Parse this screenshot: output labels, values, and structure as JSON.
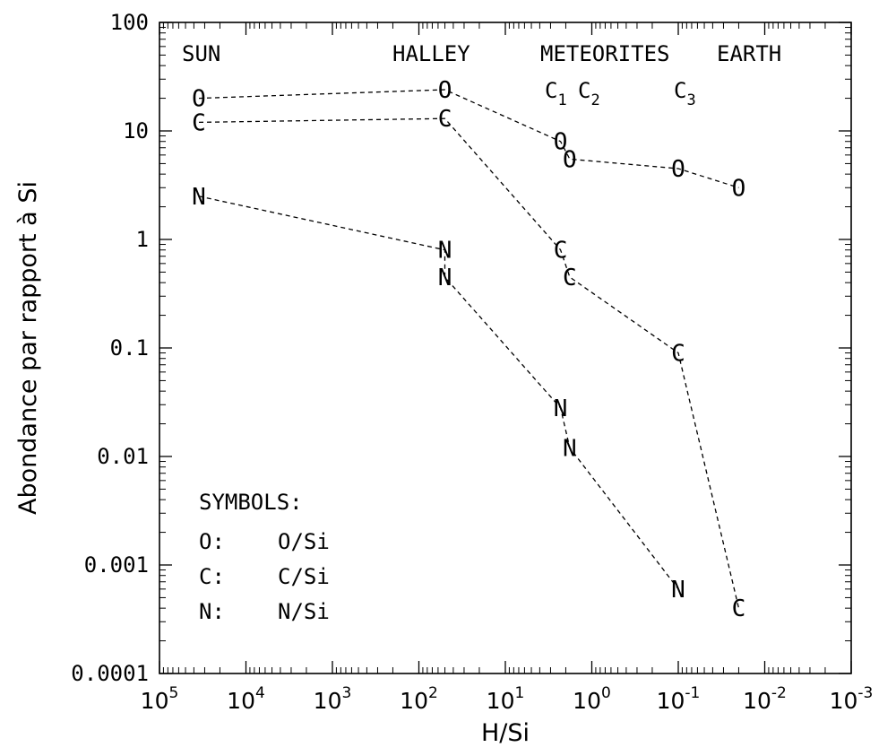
{
  "chart_data": {
    "type": "line",
    "title": "",
    "xlabel": "H/Si",
    "ylabel": "Abondance par rapport à Si",
    "x_scale": "log",
    "x_reversed": true,
    "y_scale": "log",
    "xlim": [
      100000,
      0.001
    ],
    "ylim": [
      0.0001,
      100
    ],
    "grid": false,
    "x_ticks": [
      {
        "base": "10",
        "exp": "5"
      },
      {
        "base": "10",
        "exp": "4"
      },
      {
        "base": "10",
        "exp": "3"
      },
      {
        "base": "10",
        "exp": "2"
      },
      {
        "base": "10",
        "exp": "1"
      },
      {
        "base": "10",
        "exp": "0"
      },
      {
        "base": "10",
        "exp": "-1"
      },
      {
        "base": "10",
        "exp": "-2"
      },
      {
        "base": "10",
        "exp": "-3"
      }
    ],
    "y_ticks": [
      "100",
      "10",
      "1",
      "0.1",
      "0.01",
      "0.001",
      "0.0001"
    ],
    "series": [
      {
        "name": "O/Si",
        "marker": "O",
        "x": [
          35000,
          50,
          2.3,
          1.8,
          0.1,
          0.02
        ],
        "y": [
          20,
          24,
          8,
          5.5,
          4.5,
          3
        ]
      },
      {
        "name": "C/Si",
        "marker": "C",
        "x": [
          35000,
          50,
          2.3,
          1.8,
          0.1,
          0.02
        ],
        "y": [
          12,
          13,
          0.8,
          0.45,
          0.09,
          0.0004
        ]
      },
      {
        "name": "N/Si",
        "marker": "N",
        "x": [
          35000,
          50,
          50,
          2.3,
          1.8,
          0.1
        ],
        "y": [
          2.5,
          0.8,
          0.45,
          0.028,
          0.012,
          0.0006
        ]
      }
    ],
    "region_labels": [
      "SUN",
      "HALLEY",
      "METEORITES",
      "EARTH"
    ],
    "sub_labels": [
      {
        "sym": "C",
        "sub": "1"
      },
      {
        "sym": "C",
        "sub": "2"
      },
      {
        "sym": "C",
        "sub": "3"
      }
    ],
    "legend": {
      "title": "SYMBOLS:",
      "position": "bottom-left",
      "items": [
        {
          "key": "O:",
          "label": "O/Si"
        },
        {
          "key": "C:",
          "label": "C/Si"
        },
        {
          "key": "N:",
          "label": "N/Si"
        }
      ]
    }
  }
}
